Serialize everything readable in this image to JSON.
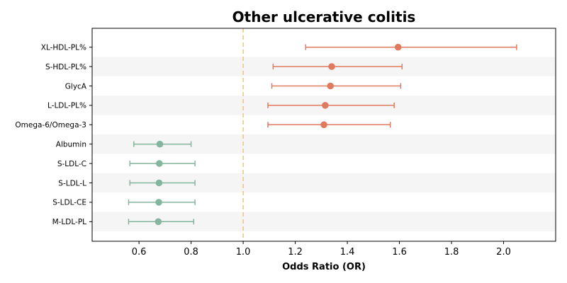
{
  "chart_data": {
    "type": "forest",
    "title": "Other ulcerative colitis",
    "xlabel": "Odds Ratio (OR)",
    "xlim": [
      0.42,
      2.2
    ],
    "xticks": [
      "0.6",
      "0.8",
      "1.0",
      "1.2",
      "1.4",
      "1.6",
      "1.8",
      "2.0"
    ],
    "reference_line": 1.0,
    "reference_color": "#f0c97a",
    "band_color": "#f5f5f5",
    "colors": {
      "risk": "#e07a5f",
      "protective": "#84b59e"
    },
    "rows": [
      {
        "label": "XL-HDL-PL%",
        "or": 1.595,
        "lo": 1.24,
        "hi": 2.05,
        "group": "risk"
      },
      {
        "label": "S-HDL-PL%",
        "or": 1.34,
        "lo": 1.115,
        "hi": 1.61,
        "group": "risk"
      },
      {
        "label": "GlycA",
        "or": 1.335,
        "lo": 1.11,
        "hi": 1.605,
        "group": "risk"
      },
      {
        "label": "L-LDL-PL%",
        "or": 1.315,
        "lo": 1.095,
        "hi": 1.58,
        "group": "risk"
      },
      {
        "label": "Omega-6/Omega-3",
        "or": 1.31,
        "lo": 1.095,
        "hi": 1.565,
        "group": "risk"
      },
      {
        "label": "Albumin",
        "or": 0.68,
        "lo": 0.58,
        "hi": 0.8,
        "group": "protective"
      },
      {
        "label": "S-LDL-C",
        "or": 0.678,
        "lo": 0.565,
        "hi": 0.815,
        "group": "protective"
      },
      {
        "label": "S-LDL-L",
        "or": 0.677,
        "lo": 0.565,
        "hi": 0.815,
        "group": "protective"
      },
      {
        "label": "S-LDL-CE",
        "or": 0.676,
        "lo": 0.56,
        "hi": 0.815,
        "group": "protective"
      },
      {
        "label": "M-LDL-PL",
        "or": 0.674,
        "lo": 0.56,
        "hi": 0.81,
        "group": "protective"
      }
    ]
  }
}
